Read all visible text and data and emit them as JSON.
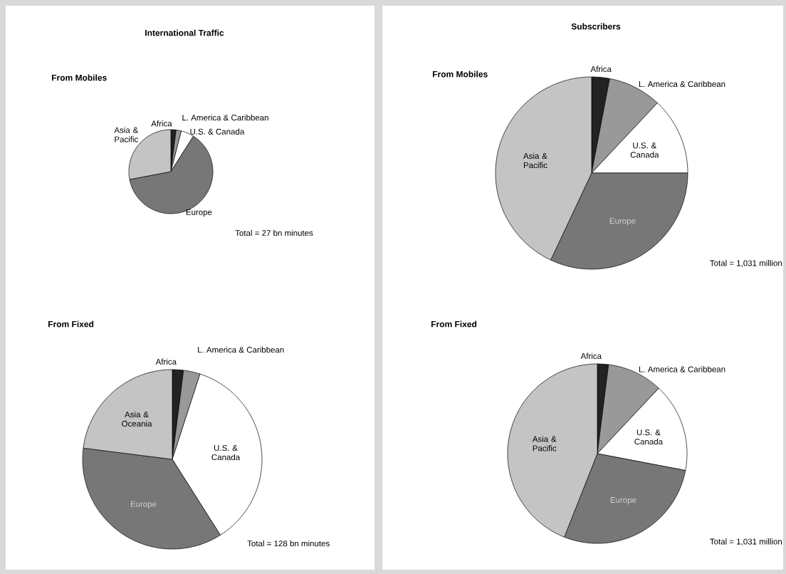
{
  "chart_data": [
    {
      "type": "pie",
      "title": "International Traffic",
      "subtitle": "From Mobiles",
      "categories": [
        "Africa",
        "L. America & Caribbean",
        "U.S. & Canada",
        "Europe",
        "Asia & Pacific"
      ],
      "values": [
        2,
        2,
        5,
        63,
        28
      ],
      "colors": [
        "#222222",
        "#999999",
        "#ffffff",
        "#777777",
        "#c4c4c4"
      ],
      "annotations": [
        "Total = 27 bn minutes"
      ]
    },
    {
      "type": "pie",
      "subtitle": "From Fixed",
      "categories": [
        "Africa",
        "L. America & Caribbean",
        "U.S. & Canada",
        "Europe",
        "Asia & Oceania"
      ],
      "values": [
        2,
        3,
        36,
        36,
        23
      ],
      "colors": [
        "#222222",
        "#999999",
        "#ffffff",
        "#777777",
        "#c4c4c4"
      ],
      "annotations": [
        "Total = 128 bn minutes"
      ]
    },
    {
      "type": "pie",
      "title": "Subscribers",
      "subtitle": "From Mobiles",
      "categories": [
        "Africa",
        "L. America & Caribbean",
        "U.S. & Canada",
        "Europe",
        "Asia & Pacific"
      ],
      "values": [
        3,
        9,
        13,
        32,
        43
      ],
      "colors": [
        "#222222",
        "#999999",
        "#ffffff",
        "#777777",
        "#c4c4c4"
      ],
      "annotations": [
        "Total = 1,031 million"
      ]
    },
    {
      "type": "pie",
      "subtitle": "From Fixed",
      "categories": [
        "Africa",
        "L. America & Caribbean",
        "U.S. & Canada",
        "Europe",
        "Asia & Pacific"
      ],
      "values": [
        2,
        10,
        16,
        28,
        44
      ],
      "colors": [
        "#222222",
        "#999999",
        "#ffffff",
        "#777777",
        "#c4c4c4"
      ],
      "annotations": [
        "Total = 1,031 million"
      ]
    }
  ]
}
